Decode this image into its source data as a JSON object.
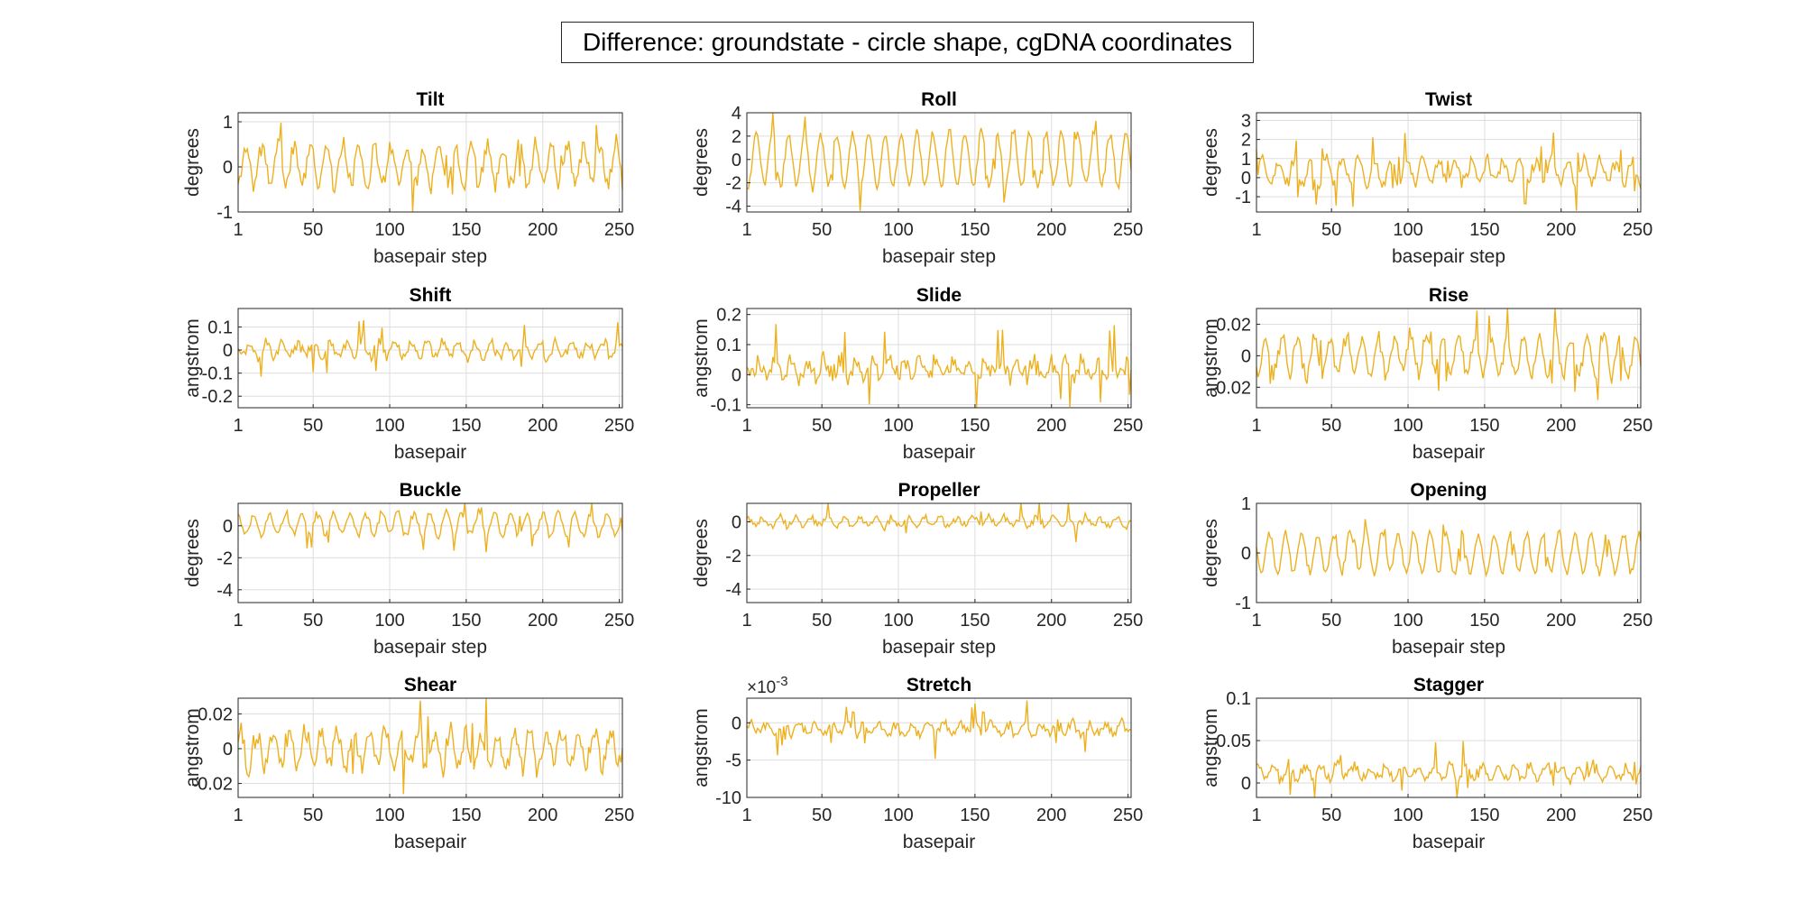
{
  "figure": {
    "title": "Difference: groundstate - circle shape, cgDNA coordinates"
  },
  "chart_data": [
    {
      "type": "line",
      "title": "Tilt",
      "xlabel": "basepair step",
      "ylabel": "degrees",
      "xlim": [
        1,
        252
      ],
      "ylim": [
        -1,
        1.2
      ],
      "xticks": [
        1,
        50,
        100,
        150,
        200,
        250
      ],
      "yticks": [
        -1,
        0,
        1
      ],
      "ytick_labels": [
        "-1",
        "0",
        "1"
      ],
      "multiplier": "",
      "n_points": 252,
      "period": 10.5,
      "amplitude": 0.45,
      "noise": 0.25,
      "offset": 0.05,
      "seed": 11
    },
    {
      "type": "line",
      "title": "Roll",
      "xlabel": "basepair step",
      "ylabel": "degrees",
      "xlim": [
        1,
        252
      ],
      "ylim": [
        -4.5,
        4
      ],
      "xticks": [
        1,
        50,
        100,
        150,
        200,
        250
      ],
      "yticks": [
        -4,
        -2,
        0,
        2,
        4
      ],
      "ytick_labels": [
        "-4",
        "-2",
        "0",
        "2",
        "4"
      ],
      "multiplier": "",
      "n_points": 252,
      "period": 10.5,
      "amplitude": 2.3,
      "noise": 0.6,
      "offset": 0,
      "seed": 23
    },
    {
      "type": "line",
      "title": "Twist",
      "xlabel": "basepair step",
      "ylabel": "degrees",
      "xlim": [
        1,
        252
      ],
      "ylim": [
        -1.8,
        3.4
      ],
      "xticks": [
        1,
        50,
        100,
        150,
        200,
        250
      ],
      "yticks": [
        -1,
        0,
        1,
        2,
        3
      ],
      "ytick_labels": [
        "-1",
        "0",
        "1",
        "2",
        "3"
      ],
      "multiplier": "",
      "n_points": 252,
      "period": 10.5,
      "amplitude": 0.6,
      "noise": 0.45,
      "offset": 0.3,
      "seed": 37
    },
    {
      "type": "line",
      "title": "Shift",
      "xlabel": "basepair",
      "ylabel": "angstrom",
      "xlim": [
        1,
        252
      ],
      "ylim": [
        -0.25,
        0.18
      ],
      "xticks": [
        1,
        50,
        100,
        150,
        200,
        250
      ],
      "yticks": [
        -0.2,
        -0.1,
        0,
        0.1
      ],
      "ytick_labels": [
        "-0.2",
        "-0.1",
        "0",
        "0.1"
      ],
      "multiplier": "",
      "n_points": 252,
      "period": 10.5,
      "amplitude": 0.03,
      "noise": 0.035,
      "offset": 0,
      "seed": 41
    },
    {
      "type": "line",
      "title": "Slide",
      "xlabel": "basepair",
      "ylabel": "angstrom",
      "xlim": [
        1,
        252
      ],
      "ylim": [
        -0.11,
        0.22
      ],
      "xticks": [
        1,
        50,
        100,
        150,
        200,
        250
      ],
      "yticks": [
        -0.1,
        0,
        0.1,
        0.2
      ],
      "ytick_labels": [
        "-0.1",
        "0",
        "0.1",
        "0.2"
      ],
      "multiplier": "",
      "n_points": 252,
      "period": 10.5,
      "amplitude": 0.025,
      "noise": 0.04,
      "offset": 0.02,
      "seed": 53
    },
    {
      "type": "line",
      "title": "Rise",
      "xlabel": "basepair",
      "ylabel": "angstrom",
      "xlim": [
        1,
        252
      ],
      "ylim": [
        -0.033,
        0.03
      ],
      "xticks": [
        1,
        50,
        100,
        150,
        200,
        250
      ],
      "yticks": [
        -0.02,
        0,
        0.02
      ],
      "ytick_labels": [
        "-0.02",
        "0",
        "0.02"
      ],
      "multiplier": "",
      "n_points": 252,
      "period": 10.5,
      "amplitude": 0.012,
      "noise": 0.007,
      "offset": 0,
      "seed": 67
    },
    {
      "type": "line",
      "title": "Buckle",
      "xlabel": "basepair step",
      "ylabel": "degrees",
      "xlim": [
        1,
        252
      ],
      "ylim": [
        -4.8,
        1.4
      ],
      "xticks": [
        1,
        50,
        100,
        150,
        200,
        250
      ],
      "yticks": [
        -4,
        -2,
        0
      ],
      "ytick_labels": [
        "-4",
        "-2",
        "0"
      ],
      "multiplier": "",
      "n_points": 252,
      "period": 10.5,
      "amplitude": 0.7,
      "noise": 0.35,
      "offset": 0.1,
      "seed": 71
    },
    {
      "type": "line",
      "title": "Propeller",
      "xlabel": "basepair step",
      "ylabel": "degrees",
      "xlim": [
        1,
        252
      ],
      "ylim": [
        -4.8,
        1.1
      ],
      "xticks": [
        1,
        50,
        100,
        150,
        200,
        250
      ],
      "yticks": [
        -4,
        -2,
        0
      ],
      "ytick_labels": [
        "-4",
        "-2",
        "0"
      ],
      "multiplier": "",
      "n_points": 252,
      "period": 10.5,
      "amplitude": 0.25,
      "noise": 0.3,
      "offset": 0,
      "seed": 83
    },
    {
      "type": "line",
      "title": "Opening",
      "xlabel": "basepair step",
      "ylabel": "degrees",
      "xlim": [
        1,
        252
      ],
      "ylim": [
        -1,
        1
      ],
      "xticks": [
        1,
        50,
        100,
        150,
        200,
        250
      ],
      "yticks": [
        -1,
        0,
        1
      ],
      "ytick_labels": [
        "-1",
        "0",
        "1"
      ],
      "multiplier": "",
      "n_points": 252,
      "period": 10.5,
      "amplitude": 0.4,
      "noise": 0.12,
      "offset": 0,
      "seed": 97
    },
    {
      "type": "line",
      "title": "Shear",
      "xlabel": "basepair",
      "ylabel": "angstrom",
      "xlim": [
        1,
        252
      ],
      "ylim": [
        -0.028,
        0.029
      ],
      "xticks": [
        1,
        50,
        100,
        150,
        200,
        250
      ],
      "yticks": [
        -0.02,
        0,
        0.02
      ],
      "ytick_labels": [
        "-0.02",
        "0",
        "0.02"
      ],
      "multiplier": "",
      "n_points": 252,
      "period": 10.5,
      "amplitude": 0.01,
      "noise": 0.009,
      "offset": 0,
      "seed": 101
    },
    {
      "type": "line",
      "title": "Stretch",
      "xlabel": "basepair",
      "ylabel": "angstrom",
      "xlim": [
        1,
        252
      ],
      "ylim": [
        -0.01,
        0.0033
      ],
      "xticks": [
        1,
        50,
        100,
        150,
        200,
        250
      ],
      "yticks": [
        -0.01,
        -0.005,
        0
      ],
      "ytick_labels": [
        "-10",
        "-5",
        "0"
      ],
      "multiplier": "-3",
      "n_points": 252,
      "period": 10.5,
      "amplitude": 0.0007,
      "noise": 0.0009,
      "offset": -0.0008,
      "seed": 113
    },
    {
      "type": "line",
      "title": "Stagger",
      "xlabel": "basepair",
      "ylabel": "angstrom",
      "xlim": [
        1,
        252
      ],
      "ylim": [
        -0.017,
        0.1
      ],
      "xticks": [
        1,
        50,
        100,
        150,
        200,
        250
      ],
      "yticks": [
        0,
        0.05,
        0.1
      ],
      "ytick_labels": [
        "0",
        "0.05",
        "0.1"
      ],
      "multiplier": "",
      "n_points": 252,
      "period": 10.5,
      "amplitude": 0.008,
      "noise": 0.009,
      "offset": 0.012,
      "seed": 127
    }
  ],
  "colors": {
    "line": "#EDB120",
    "grid": "#DEDEDE",
    "axis": "#262626"
  }
}
